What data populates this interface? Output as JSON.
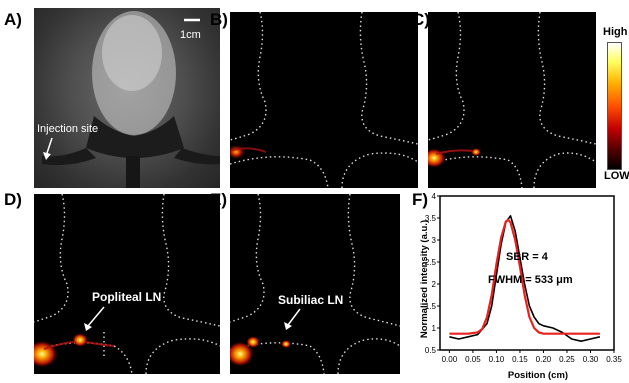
{
  "panels": {
    "a": {
      "label": "A)",
      "scale_bar": "1cm",
      "annotation": "Injection site"
    },
    "b": {
      "label": "B)"
    },
    "c": {
      "label": "C)"
    },
    "d": {
      "label": "D)",
      "annotation": "Popliteal LN"
    },
    "e": {
      "label": "E)",
      "annotation": "Subiliac LN"
    },
    "f": {
      "label": "F)"
    }
  },
  "colorbar": {
    "high": "High",
    "low": "LOW",
    "colors": [
      "#ffffff",
      "#ffff60",
      "#ffb000",
      "#ff5000",
      "#c00000",
      "#500000",
      "#000000"
    ]
  },
  "chart_data": {
    "type": "line",
    "xlabel": "Position (cm)",
    "ylabel": "Normalized  intensity (a.u.)",
    "xlim": [
      -0.02,
      0.35
    ],
    "ylim": [
      0.5,
      4.0
    ],
    "xticks": [
      "0.00",
      "0.05",
      "0.10",
      "0.15",
      "0.20",
      "0.25",
      "0.30",
      "0.35"
    ],
    "yticks": [
      "0.5",
      "1",
      "1.5",
      "2",
      "2.5",
      "3",
      "3.5",
      "4"
    ],
    "annotations": [
      "SBR = 4",
      "FWHM = 533 μm"
    ],
    "series": [
      {
        "color": "#000000",
        "x": [
          0.0,
          0.02,
          0.04,
          0.06,
          0.08,
          0.09,
          0.1,
          0.11,
          0.12,
          0.13,
          0.14,
          0.15,
          0.16,
          0.17,
          0.18,
          0.19,
          0.2,
          0.22,
          0.24,
          0.26,
          0.28,
          0.3,
          0.32
        ],
        "y": [
          0.8,
          0.75,
          0.8,
          0.85,
          1.1,
          1.5,
          2.2,
          2.9,
          3.4,
          3.55,
          3.2,
          2.6,
          2.0,
          1.5,
          1.25,
          1.1,
          1.05,
          1.0,
          0.9,
          0.75,
          0.7,
          0.75,
          0.8
        ]
      },
      {
        "color": "#e8231f",
        "x": [
          0.0,
          0.04,
          0.06,
          0.07,
          0.08,
          0.09,
          0.1,
          0.11,
          0.12,
          0.125,
          0.13,
          0.14,
          0.15,
          0.16,
          0.17,
          0.18,
          0.19,
          0.2,
          0.24,
          0.28,
          0.32
        ],
        "y": [
          0.87,
          0.87,
          0.9,
          0.98,
          1.25,
          1.75,
          2.45,
          3.05,
          3.42,
          3.46,
          3.4,
          3.0,
          2.4,
          1.75,
          1.25,
          1.0,
          0.9,
          0.87,
          0.87,
          0.87,
          0.87
        ]
      }
    ]
  }
}
